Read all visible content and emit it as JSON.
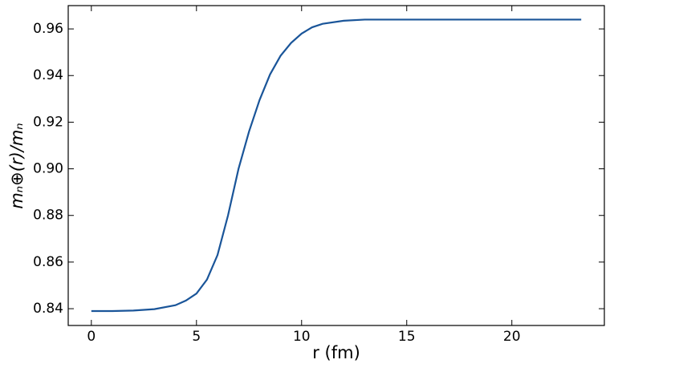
{
  "chart_data": {
    "type": "line",
    "x": [
      0,
      1,
      2,
      3,
      4,
      4.5,
      5,
      5.5,
      6,
      6.5,
      7,
      7.5,
      8,
      8.5,
      9,
      9.5,
      10,
      10.5,
      11,
      12,
      13,
      14,
      16,
      18,
      20,
      22,
      23.3
    ],
    "series": [
      {
        "color": "#1a5599",
        "values": [
          0.839,
          0.839,
          0.8392,
          0.8398,
          0.8415,
          0.8435,
          0.8465,
          0.8525,
          0.863,
          0.88,
          0.9,
          0.916,
          0.9295,
          0.9405,
          0.9485,
          0.954,
          0.958,
          0.9607,
          0.9622,
          0.9635,
          0.964,
          0.964,
          0.964,
          0.964,
          0.964,
          0.964,
          0.964
        ]
      }
    ],
    "xlabel": "r (fm)",
    "ylabel": "mₙ⊕(r)/mₙ",
    "xlim": [
      -1.1,
      24.4
    ],
    "xticks": [
      0,
      5,
      10,
      15,
      20
    ],
    "ylim": [
      0.8328,
      0.97
    ],
    "yticks": [
      0.84,
      0.86,
      0.88,
      {
        "value": 0.9,
        "label": "0.90"
      },
      0.92,
      0.94,
      0.96
    ],
    "grid": false
  }
}
